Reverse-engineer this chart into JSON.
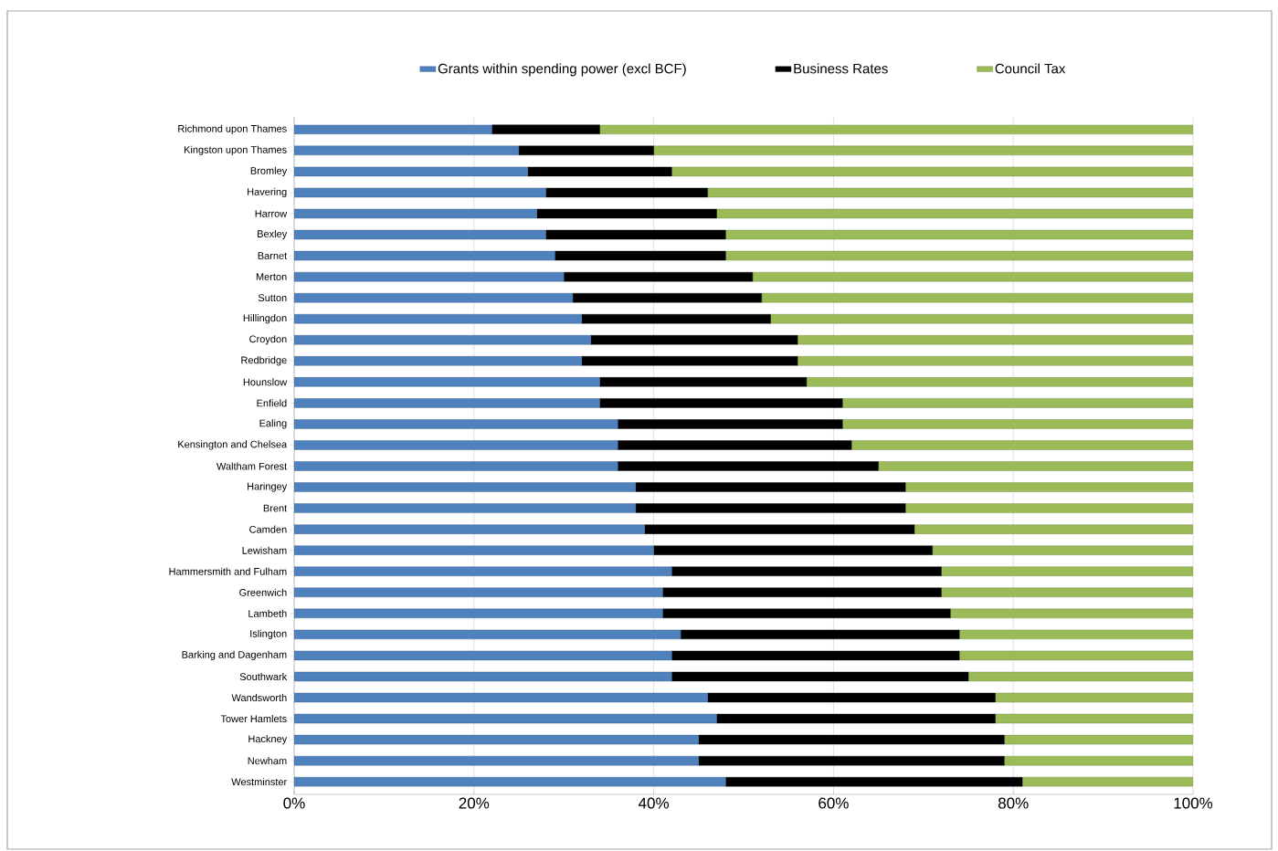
{
  "chart_data": {
    "type": "bar",
    "orientation": "horizontal",
    "stacked": true,
    "categories": [
      "Richmond upon Thames",
      "Kingston upon Thames",
      "Bromley",
      "Havering",
      "Harrow",
      "Bexley",
      "Barnet",
      "Merton",
      "Sutton",
      "Hillingdon",
      "Croydon",
      "Redbridge",
      "Hounslow",
      "Enfield",
      "Ealing",
      "Kensington and Chelsea",
      "Waltham Forest",
      "Haringey",
      "Brent",
      "Camden",
      "Lewisham",
      "Hammersmith and Fulham",
      "Greenwich",
      "Lambeth",
      "Islington",
      "Barking and Dagenham",
      "Southwark",
      "Wandsworth",
      "Tower Hamlets",
      "Hackney",
      "Newham",
      "Westminster"
    ],
    "series": [
      {
        "name": "Grants within spending power (excl BCF)",
        "color": "#4f81bd",
        "values": [
          22,
          25,
          26,
          28,
          27,
          28,
          29,
          30,
          31,
          32,
          33,
          32,
          34,
          34,
          36,
          36,
          36,
          38,
          38,
          39,
          40,
          42,
          41,
          41,
          43,
          42,
          42,
          46,
          47,
          45,
          45,
          48
        ]
      },
      {
        "name": "Business Rates",
        "color": "#000000",
        "values": [
          12,
          15,
          16,
          18,
          20,
          20,
          19,
          21,
          21,
          21,
          23,
          24,
          23,
          27,
          25,
          26,
          29,
          30,
          30,
          30,
          31,
          30,
          31,
          32,
          31,
          32,
          33,
          32,
          31,
          34,
          34,
          33
        ]
      },
      {
        "name": "Council Tax",
        "color": "#9bbb59",
        "values": [
          66,
          60,
          58,
          54,
          53,
          52,
          52,
          49,
          48,
          47,
          44,
          44,
          43,
          39,
          39,
          38,
          35,
          32,
          32,
          31,
          29,
          28,
          28,
          27,
          26,
          26,
          25,
          22,
          22,
          21,
          21,
          19
        ]
      }
    ],
    "xlim": [
      0,
      100
    ],
    "xticks": [
      {
        "value": 0,
        "label": "0%"
      },
      {
        "value": 20,
        "label": "20%"
      },
      {
        "value": 40,
        "label": "40%"
      },
      {
        "value": 60,
        "label": "60%"
      },
      {
        "value": 80,
        "label": "80%"
      },
      {
        "value": 100,
        "label": "100%"
      }
    ],
    "grid": "x",
    "legend": "top"
  }
}
